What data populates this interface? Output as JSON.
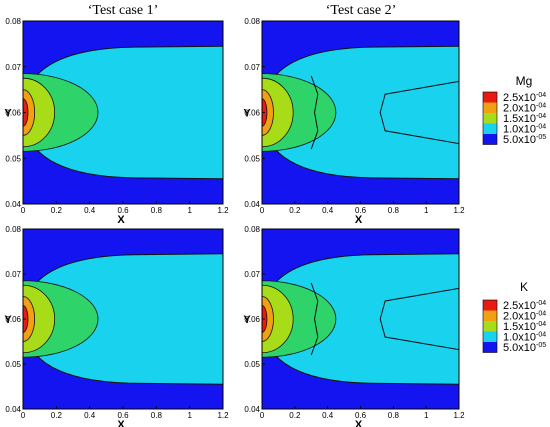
{
  "column_titles": [
    "‘Test case 1’",
    "‘Test case 2’"
  ],
  "colors": {
    "background_dark": "#1414f0",
    "level_1e-5": "#18d2ee",
    "level_1.5e-4": "#2ed36a",
    "level_2e-4": "#a8dc18",
    "level_2.5e-4": "#f0a010",
    "peak": "#e81a14",
    "contour_line": "#111111"
  },
  "legends": [
    {
      "title": "Mg",
      "entries": [
        "2.5x10",
        "2.0x10",
        "1.5x10",
        "1.0x10",
        "5.0x10"
      ],
      "exponents": [
        "-04",
        "-04",
        "-04",
        "-04",
        "-05"
      ]
    },
    {
      "title": "K",
      "entries": [
        "2.5x10",
        "2.0x10",
        "1.5x10",
        "1.0x10",
        "5.0x10"
      ],
      "exponents": [
        "-04",
        "-04",
        "-04",
        "-04",
        "-05"
      ]
    }
  ],
  "chart_data": [
    {
      "type": "heatmap",
      "species": "Mg",
      "case": "Test case 1",
      "xlabel": "X",
      "ylabel": "Y",
      "xlim": [
        0,
        1.2
      ],
      "ylim": [
        0.04,
        0.08
      ],
      "x_ticks": [
        "0",
        "0.2",
        "0.4",
        "0.6",
        "0.8",
        "1",
        "1.2"
      ],
      "y_ticks": [
        "0.04",
        "0.05",
        "0.06",
        "0.07",
        "0.08"
      ],
      "contour_levels": [
        5e-05,
        0.0001,
        0.00015,
        0.0002,
        0.00025
      ],
      "region_extent_x": [
        1.2,
        0.45,
        0.19,
        0.07,
        0.03
      ]
    },
    {
      "type": "heatmap",
      "species": "Mg",
      "case": "Test case 2",
      "xlabel": "X",
      "ylabel": "Y",
      "xlim": [
        0,
        1.2
      ],
      "ylim": [
        0.04,
        0.08
      ],
      "x_ticks": [
        "0",
        "0.2",
        "0.4",
        "0.6",
        "0.8",
        "1",
        "1.2"
      ],
      "y_ticks": [
        "0.04",
        "0.05",
        "0.06",
        "0.07",
        "0.08"
      ],
      "contour_levels": [
        5e-05,
        0.0001,
        0.00015,
        0.0002,
        0.00025
      ],
      "region_extent_x": [
        1.2,
        0.45,
        0.19,
        0.07,
        0.03
      ]
    },
    {
      "type": "heatmap",
      "species": "K",
      "case": "Test case 1",
      "xlabel": "X",
      "ylabel": "Y",
      "xlim": [
        0,
        1.2
      ],
      "ylim": [
        0.04,
        0.08
      ],
      "x_ticks": [
        "0",
        "0.2",
        "0.4",
        "0.6",
        "0.8",
        "1",
        "1.2"
      ],
      "y_ticks": [
        "0.04",
        "0.05",
        "0.06",
        "0.07",
        "0.08"
      ],
      "contour_levels": [
        5e-05,
        0.0001,
        0.00015,
        0.0002,
        0.00025
      ],
      "region_extent_x": [
        1.2,
        0.45,
        0.19,
        0.07,
        0.03
      ]
    },
    {
      "type": "heatmap",
      "species": "K",
      "case": "Test case 2",
      "xlabel": "X",
      "ylabel": "Y",
      "xlim": [
        0,
        1.2
      ],
      "ylim": [
        0.04,
        0.08
      ],
      "x_ticks": [
        "0",
        "0.2",
        "0.4",
        "0.6",
        "0.8",
        "1",
        "1.2"
      ],
      "y_ticks": [
        "0.04",
        "0.05",
        "0.06",
        "0.07",
        "0.08"
      ],
      "contour_levels": [
        5e-05,
        0.0001,
        0.00015,
        0.0002,
        0.00025
      ],
      "region_extent_x": [
        1.2,
        0.45,
        0.19,
        0.07,
        0.03
      ]
    }
  ]
}
